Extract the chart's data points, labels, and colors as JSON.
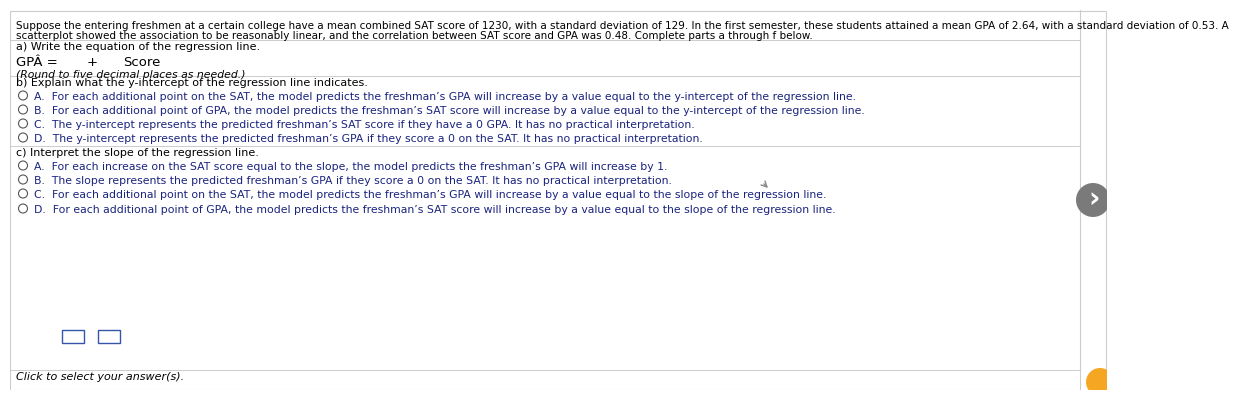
{
  "bg_color": "#ffffff",
  "border_color": "#cccccc",
  "intro_line1": "Suppose the entering freshmen at a certain college have a mean combined SAT score of 1230, with a standard deviation of 129. In the first semester, these students attained a mean GPA of 2.64, with a standard deviation of 0.53. A",
  "intro_line2": "scatterplot showed the association to be reasonably linear, and the correlation between SAT score and GPA was 0.48. Complete parts a through f below.",
  "part_a_label": "a) Write the equation of the regression line.",
  "part_a_note": "(Round to five decimal places as needed.)",
  "part_b_label": "b) Explain what the y-intercept of the regression line indicates.",
  "part_b_options": [
    "A.  For each additional point on the SAT, the model predicts the freshman’s GPA will increase by a value equal to the y-intercept of the regression line.",
    "B.  For each additional point of GPA, the model predicts the freshman’s SAT score will increase by a value equal to the y-intercept of the regression line.",
    "C.  The y-intercept represents the predicted freshman’s SAT score if they have a 0 GPA. It has no practical interpretation.",
    "D.  The y-intercept represents the predicted freshman’s GPA if they score a 0 on the SAT. It has no practical interpretation."
  ],
  "part_c_label": "c) Interpret the slope of the regression line.",
  "part_c_options": [
    "A.  For each increase on the SAT score equal to the slope, the model predicts the freshman’s GPA will increase by 1.",
    "B.  The slope represents the predicted freshman’s GPA if they score a 0 on the SAT. It has no practical interpretation.",
    "C.  For each additional point on the SAT, the model predicts the freshman’s GPA will increase by a value equal to the slope of the regression line.",
    "D.  For each additional point of GPA, the model predicts the freshman’s SAT score will increase by a value equal to the slope of the regression line."
  ],
  "footer_text": "Click to select your answer(s).",
  "text_color": "#000000",
  "option_text_color": "#1a237e",
  "label_color": "#000000",
  "intro_fontsize": 7.5,
  "label_fontsize": 8.0,
  "option_fontsize": 7.8,
  "footer_fontsize": 8.0,
  "radio_color": "#555555",
  "line_color": "#cccccc",
  "arrow_bg": "#888888",
  "orange_color": "#f5a623",
  "box_edge_color": "#3355aa"
}
